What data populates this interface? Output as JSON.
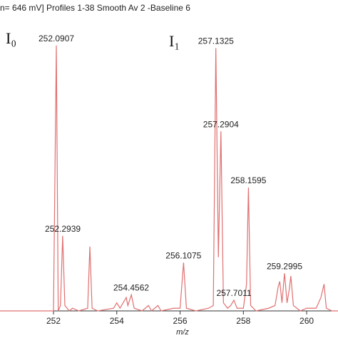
{
  "chart_data": {
    "type": "line",
    "title": "n= 646 mV]  Profiles 1-38 Smooth Av 2 -Baseline 6",
    "x_label": "m/z",
    "color": "#e07070",
    "xlim": [
      250.31,
      260.99
    ],
    "ylim": [
      0,
      100
    ],
    "xticks": [
      252,
      254,
      256,
      258,
      260
    ],
    "x": [
      250.3,
      251.95,
      252.0,
      252.09,
      252.15,
      252.22,
      252.29,
      252.36,
      252.5,
      252.6,
      252.8,
      253.08,
      253.15,
      253.22,
      253.4,
      253.9,
      254.0,
      254.1,
      254.25,
      254.3,
      254.35,
      254.46,
      254.55,
      254.8,
      255.0,
      255.1,
      255.3,
      255.4,
      255.8,
      256.0,
      256.11,
      256.2,
      256.5,
      256.9,
      257.05,
      257.13,
      257.21,
      257.29,
      257.37,
      257.5,
      257.6,
      257.7,
      257.8,
      258.0,
      258.1,
      258.16,
      258.23,
      258.4,
      258.8,
      259.0,
      259.1,
      259.15,
      259.22,
      259.3,
      259.38,
      259.45,
      259.5,
      259.58,
      259.8,
      260.0,
      260.3,
      260.45,
      260.55,
      260.62,
      260.8,
      260.99
    ],
    "values": [
      0,
      0,
      0,
      99,
      0,
      2,
      28,
      2,
      0,
      1,
      0,
      1,
      24,
      1,
      0,
      1,
      3,
      1,
      4,
      5,
      2,
      6,
      1,
      0,
      2,
      0,
      2,
      0,
      1,
      1,
      18,
      1,
      0,
      1,
      2,
      98,
      20,
      67,
      3,
      1,
      2,
      4,
      1,
      1,
      10,
      46,
      2,
      0,
      1,
      2,
      9,
      11,
      3,
      14,
      3,
      8,
      13,
      2,
      0,
      1,
      1,
      5,
      10,
      1,
      0,
      0
    ],
    "peak_labels": [
      252.0907,
      252.2939,
      254.4562,
      256.1075,
      257.1325,
      257.2904,
      257.7011,
      258.1595,
      259.2995
    ],
    "annotations": [
      "I₀",
      "I₁"
    ]
  }
}
